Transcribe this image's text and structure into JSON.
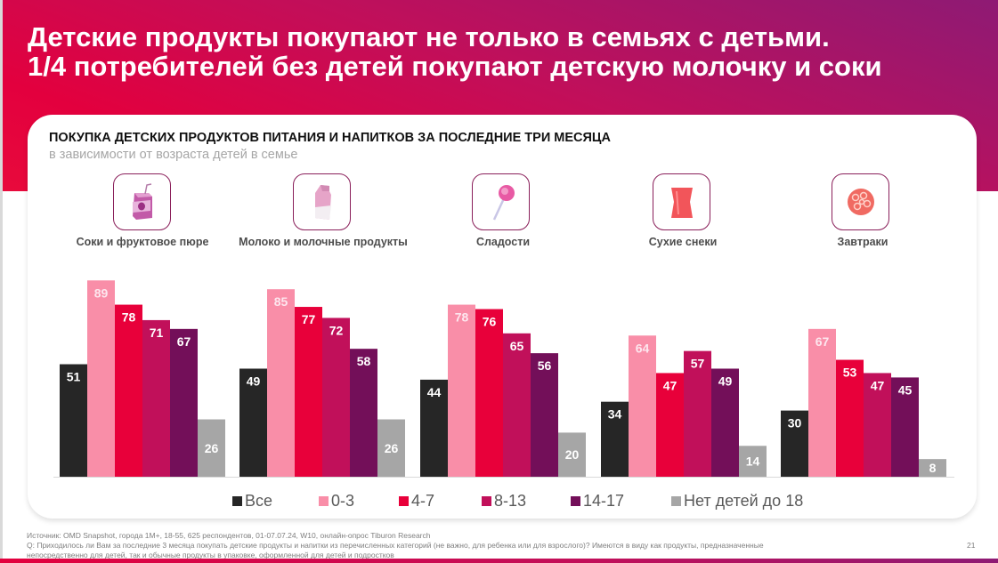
{
  "header": {
    "title_line1": "Детские продукты покупают не только в семьях с детьми.",
    "title_line2": "1/4 потребителей без детей покупают детскую молочку и соки"
  },
  "categories_meta": [
    {
      "label": "Соки и фруктовое пюре",
      "icon": "juice-box-icon"
    },
    {
      "label": "Молоко и молочные продукты",
      "icon": "milk-carton-icon"
    },
    {
      "label": "Сладости",
      "icon": "lollipop-icon"
    },
    {
      "label": "Сухие снеки",
      "icon": "snack-bag-icon"
    },
    {
      "label": "Завтраки",
      "icon": "cereal-bowl-icon"
    }
  ],
  "chart_data": {
    "type": "bar",
    "title": "ПОКУПКА ДЕТСКИХ ПРОДУКТОВ ПИТАНИЯ И НАПИТКОВ ЗА ПОСЛЕДНИЕ ТРИ МЕСЯЦА",
    "subtitle": "в зависимости от возраста детей в семье",
    "xlabel": "",
    "ylabel": "",
    "ylim": [
      0,
      100
    ],
    "grid": false,
    "legend_position": "bottom",
    "categories": [
      "Соки и фруктовое пюре",
      "Молоко и молочные продукты",
      "Сладости",
      "Сухие снеки",
      "Завтраки"
    ],
    "series": [
      {
        "name": "Все",
        "color": "#262626",
        "values": [
          51,
          49,
          44,
          34,
          30
        ]
      },
      {
        "name": "0-3",
        "color": "#f98ea8",
        "values": [
          89,
          85,
          78,
          64,
          67
        ]
      },
      {
        "name": "4-7",
        "color": "#e8003a",
        "values": [
          78,
          77,
          76,
          47,
          53
        ]
      },
      {
        "name": "8-13",
        "color": "#c1105a",
        "values": [
          71,
          72,
          65,
          57,
          47
        ]
      },
      {
        "name": "14-17",
        "color": "#730f59",
        "values": [
          67,
          58,
          56,
          49,
          45
        ]
      },
      {
        "name": "Нет детей до 18",
        "color": "#a6a6a6",
        "values": [
          26,
          26,
          20,
          14,
          8
        ]
      }
    ]
  },
  "footer": {
    "source": "Источник: OMD Snapshot, города 1M+, 18-55, 625 респондентов, 01-07.07.24, W10, онлайн-опрос Tiburon Research",
    "question_line1": "Q: Приходилось ли Вам за последние 3 месяца покупать детские продукты и напитки из перечисленных категорий (не важно, для ребенка или для взрослого)? Имеются в виду как продукты, предназначенные",
    "question_line2": "непосредственно для детей, так и обычные продукты в упаковке, оформленной для детей и подростков",
    "page_number": "21"
  }
}
